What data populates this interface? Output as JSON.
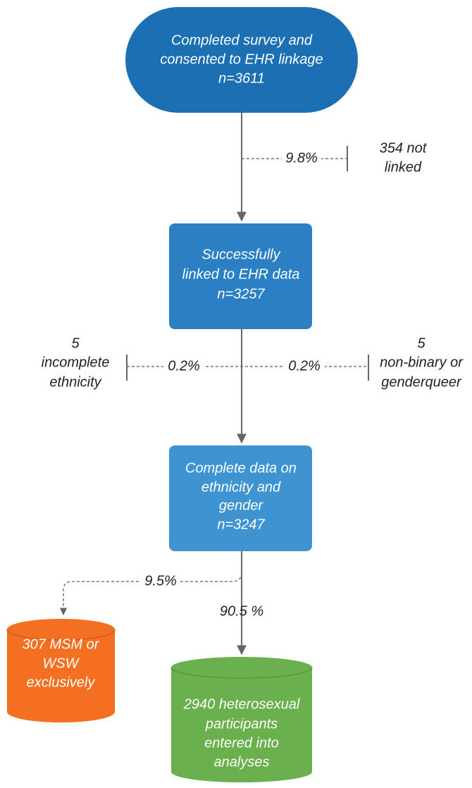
{
  "nodes": [
    {
      "lines": [
        "Completed survey and",
        "consented to EHR linkage",
        "n=3611"
      ]
    },
    {
      "lines": [
        "Successfully",
        "linked to EHR data",
        "n=3257"
      ]
    },
    {
      "lines": [
        "Complete data on",
        "ethnicity and",
        "gender",
        "n=3247"
      ]
    },
    {
      "lines": [
        "307 MSM or",
        "WSW",
        "exclusively"
      ]
    },
    {
      "lines": [
        "2940 heterosexual",
        "participants",
        "entered into",
        "analyses"
      ]
    }
  ],
  "exclusions": [
    {
      "percent": "9.8%",
      "lines": [
        "354 not",
        "linked"
      ]
    },
    {
      "percent": "0.2%",
      "lines": [
        "5",
        "incomplete",
        "ethnicity"
      ]
    },
    {
      "percent": "0.2%",
      "lines": [
        "5",
        "non-binary or",
        "genderqueer"
      ]
    }
  ],
  "splits": [
    {
      "percent": "9.5%"
    },
    {
      "percent": "90.5 %"
    }
  ]
}
